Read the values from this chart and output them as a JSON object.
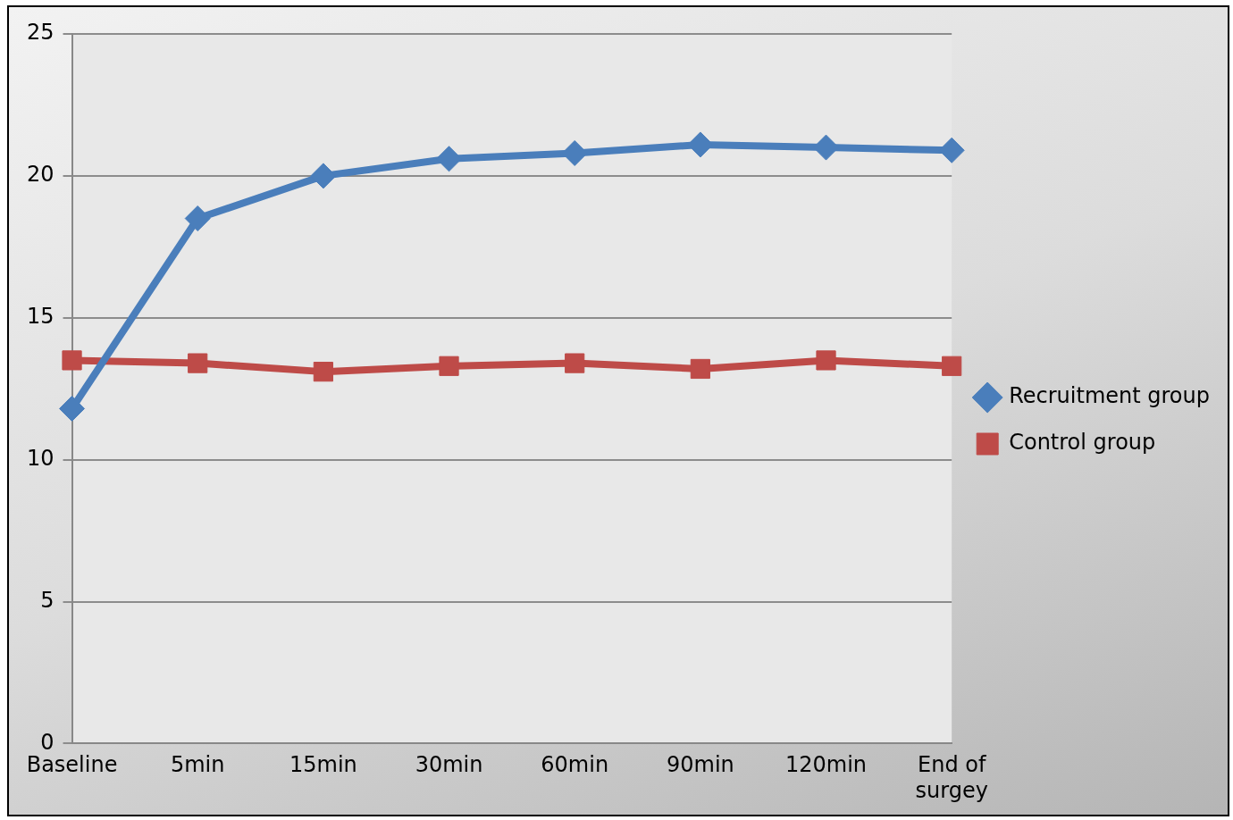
{
  "chart_data": {
    "type": "line",
    "categories": [
      "Baseline",
      "5min",
      "15min",
      "30min",
      "60min",
      "90min",
      "120min",
      "End of surgey"
    ],
    "series": [
      {
        "name": "Recruitment group",
        "color": "#4a7ebb",
        "marker": "diamond",
        "values": [
          11.8,
          18.5,
          20.0,
          20.6,
          20.8,
          21.1,
          21.0,
          20.9
        ]
      },
      {
        "name": "Control group",
        "color": "#be4b48",
        "marker": "square",
        "values": [
          13.5,
          13.4,
          13.1,
          13.3,
          13.4,
          13.2,
          13.5,
          13.3
        ]
      }
    ],
    "ylim": [
      0,
      25
    ],
    "yticks": [
      0,
      5,
      10,
      15,
      20,
      25
    ],
    "grid": "y",
    "legend": "right",
    "line_style": "solid"
  }
}
